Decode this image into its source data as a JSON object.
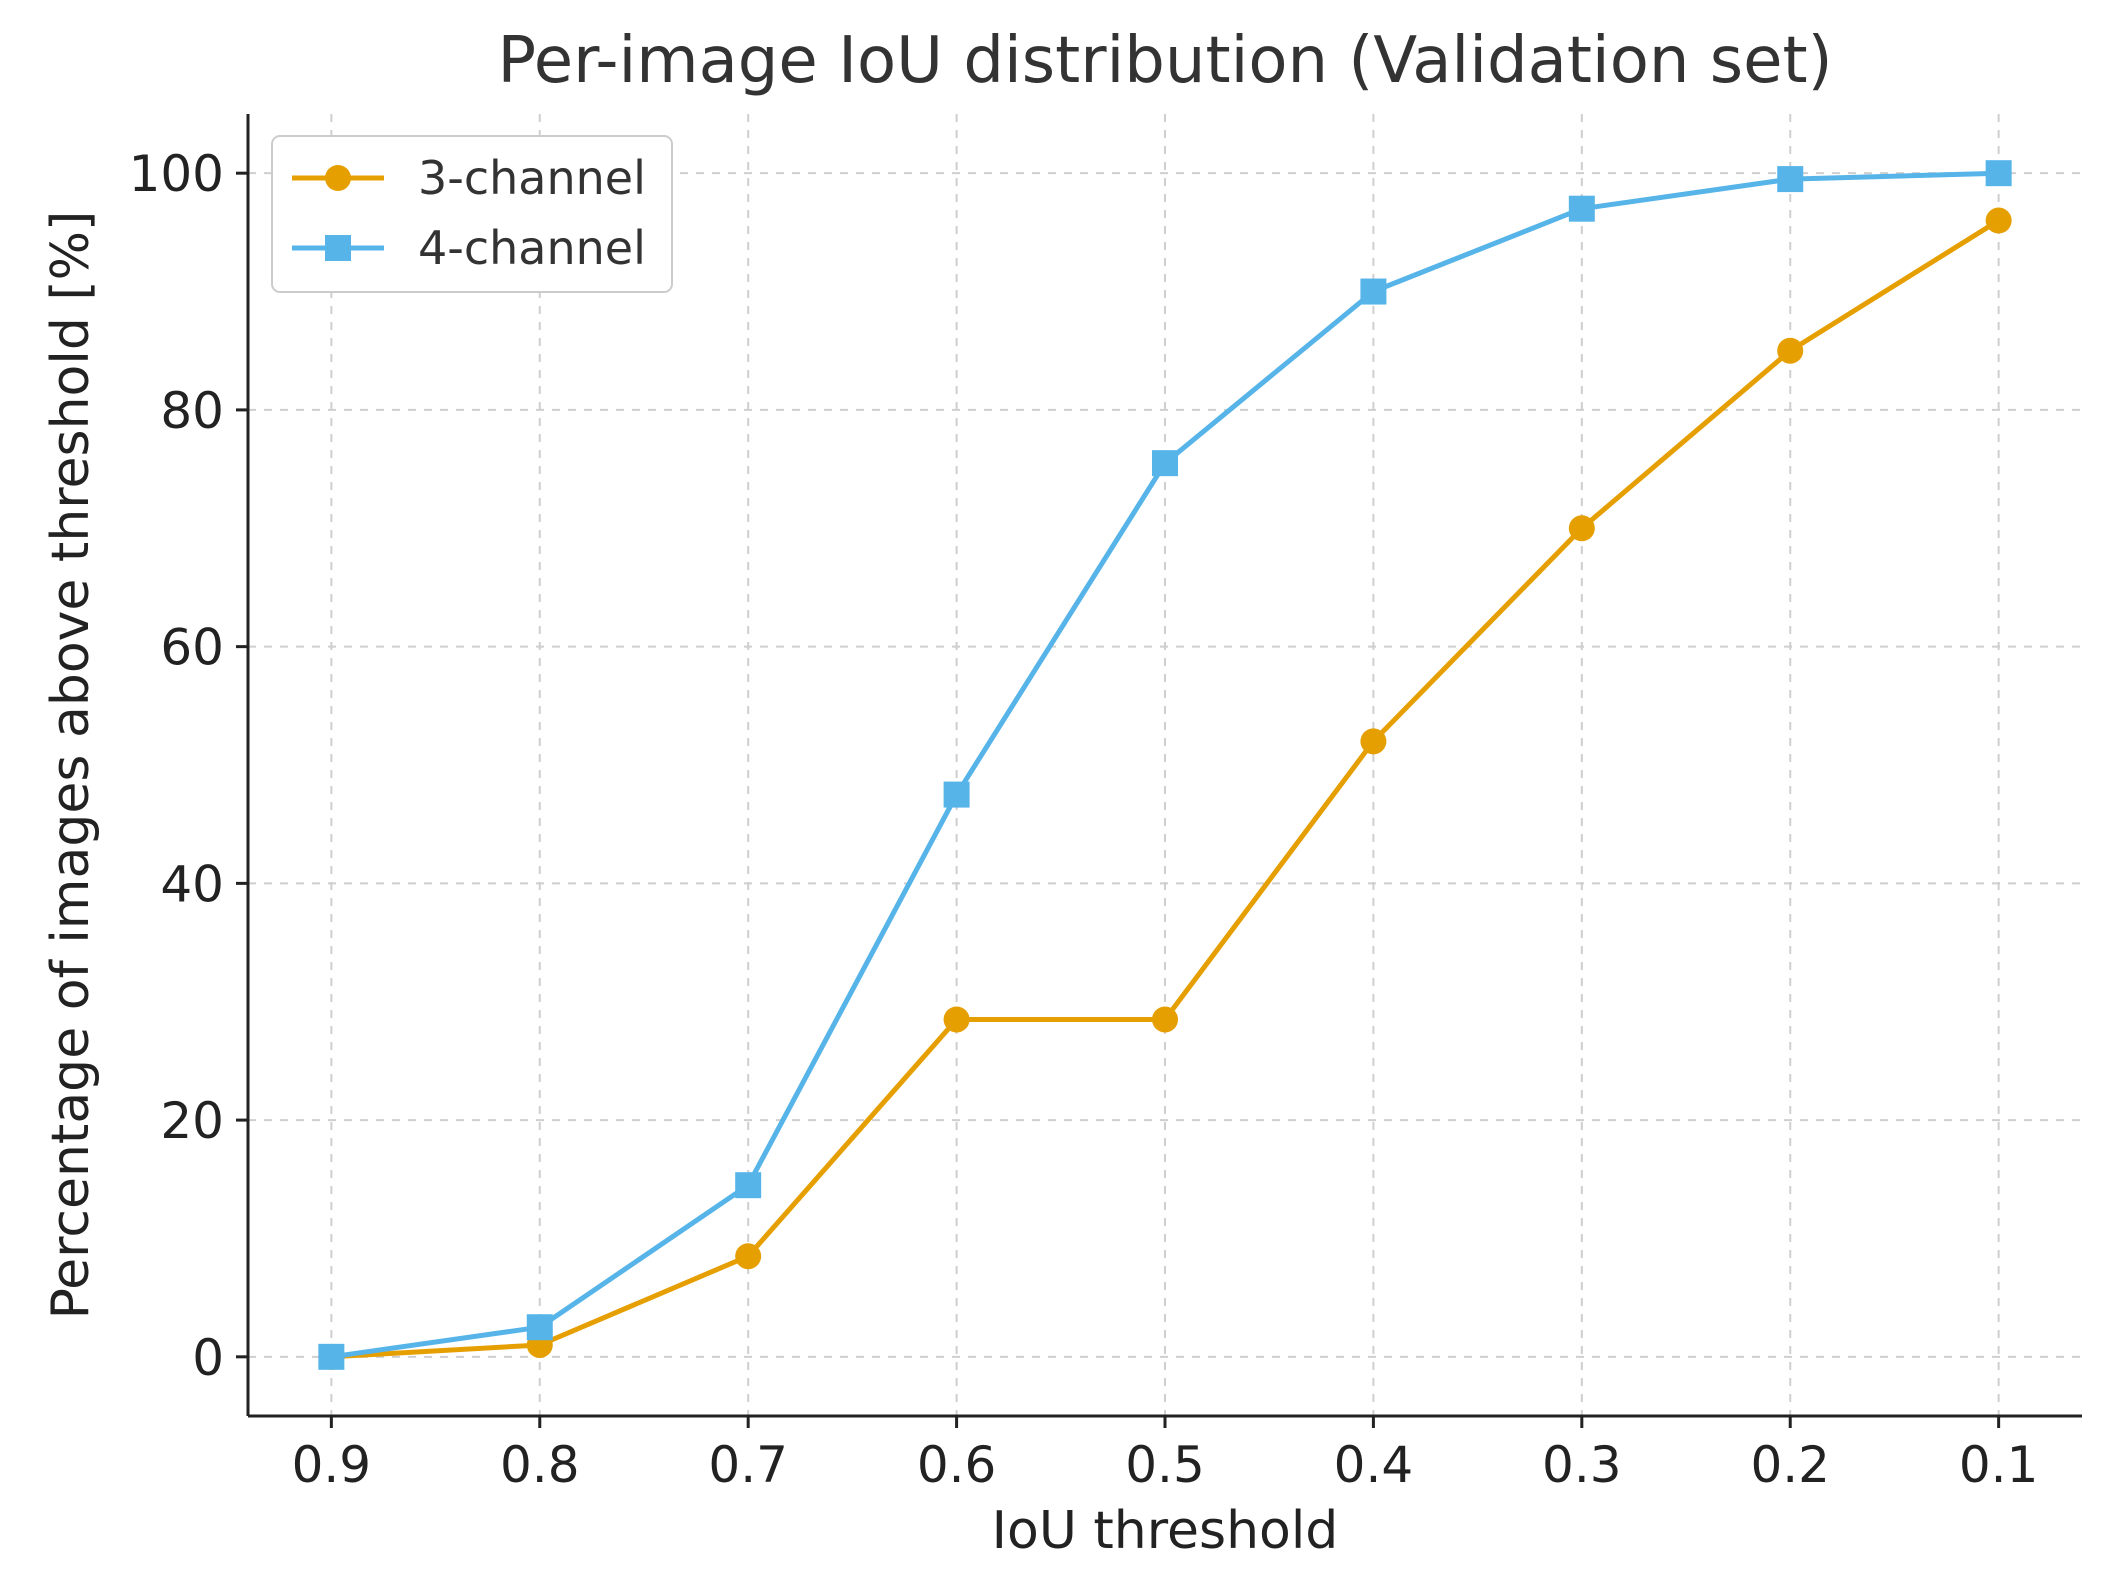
{
  "chart_data": {
    "type": "line",
    "title": "Per-image IoU distribution (Validation set)",
    "xlabel": "IoU threshold",
    "ylabel": "Percentage of images above threshold [%]",
    "categories": [
      "0.9",
      "0.8",
      "0.7",
      "0.6",
      "0.5",
      "0.4",
      "0.3",
      "0.2",
      "0.1"
    ],
    "x": [
      0.9,
      0.8,
      0.7,
      0.6,
      0.5,
      0.4,
      0.3,
      0.2,
      0.1
    ],
    "xlim": [
      0.94,
      0.06
    ],
    "ylim": [
      -5,
      105
    ],
    "yticks": [
      0,
      20,
      40,
      60,
      80,
      100
    ],
    "grid": true,
    "legend_position": "top-left",
    "series": [
      {
        "name": "3-channel",
        "color": "#E69F00",
        "marker": "circle",
        "values": [
          0,
          1,
          8.5,
          28.5,
          28.5,
          52,
          70,
          85,
          96
        ]
      },
      {
        "name": "4-channel",
        "color": "#56B4E9",
        "marker": "square",
        "values": [
          0,
          2.5,
          14.5,
          47.5,
          75.5,
          90,
          97,
          99.5,
          100
        ]
      }
    ]
  }
}
